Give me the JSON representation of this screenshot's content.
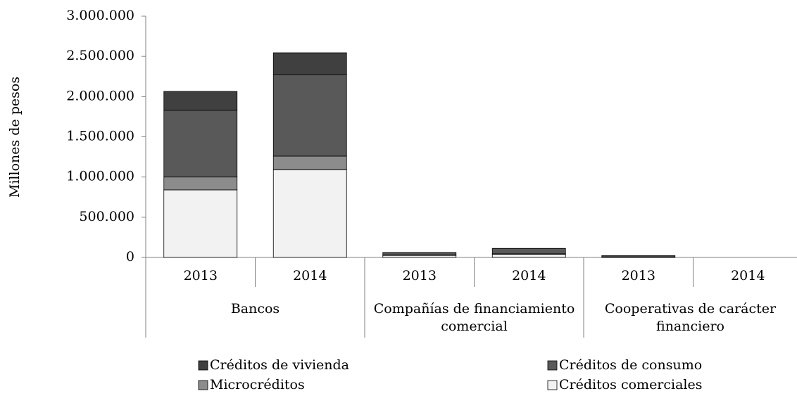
{
  "chart_data": {
    "type": "stacked_bar",
    "y_label": "Millones de pesos",
    "groups": [
      {
        "name": "Bancos",
        "categories": [
          "2013",
          "2014"
        ]
      },
      {
        "name": "Compañías de financiamiento comercial",
        "categories": [
          "2013",
          "2014"
        ]
      },
      {
        "name": "Cooperativas de carácter financiero",
        "categories": [
          "2013",
          "2014"
        ]
      }
    ],
    "series": [
      {
        "name": "Créditos comerciales",
        "color": "#f2f2f2",
        "values": [
          840000,
          1090000,
          25000,
          40000,
          3000,
          0
        ]
      },
      {
        "name": "Microcréditos",
        "color": "#8c8c8c",
        "values": [
          160000,
          170000,
          5000,
          5000,
          2000,
          0
        ]
      },
      {
        "name": "Créditos de consumo",
        "color": "#595959",
        "values": [
          830000,
          1015000,
          30000,
          65000,
          15000,
          0
        ]
      },
      {
        "name": "Créditos de vivienda",
        "color": "#404040",
        "values": [
          235000,
          270000,
          1000,
          2000,
          1000,
          0
        ]
      }
    ],
    "legend_order": [
      3,
      2,
      1,
      0
    ],
    "ylim": [
      0,
      3000000
    ],
    "yticks": [
      0,
      {
        "value": 500000,
        "label": "500.000"
      },
      {
        "value": 1000000,
        "label": "1.000.000"
      },
      {
        "value": 1500000,
        "label": "1.500.000"
      },
      {
        "value": 2000000,
        "label": "2.000.000"
      },
      {
        "value": 2500000,
        "label": "2.500.000"
      },
      {
        "value": 3000000,
        "label": "3.000.000"
      }
    ]
  }
}
